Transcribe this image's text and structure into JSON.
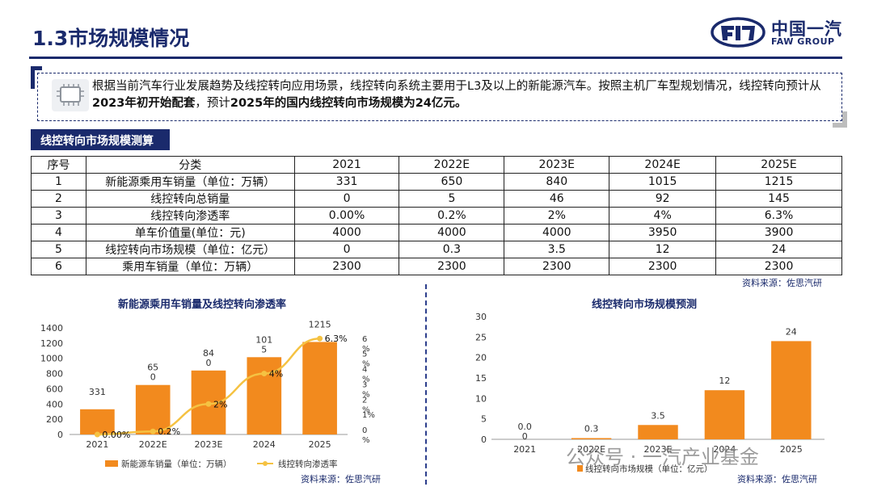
{
  "header": {
    "title": "1.3市场规模情况",
    "logo_cn": "中国一汽",
    "logo_en": "FAW GROUP"
  },
  "callout": {
    "text_1": "根据当前汽车行业发展趋势及线控转向应用场景，线控转向系统主要用于L3及以上的新能源汽车。按照主机厂车型规划情况，线控转向预计从",
    "bold_1": "2023年初开始配套",
    "text_2": "，预计",
    "bold_2": "2025年的国内线控转向市场规模为24亿元。"
  },
  "section_label": "线控转向市场规模测算",
  "table": {
    "headers": [
      "序号",
      "分类",
      "2021",
      "2022E",
      "2023E",
      "2024E",
      "2025E"
    ],
    "rows": [
      [
        "1",
        "新能源乘用车销量（单位：万辆）",
        "331",
        "650",
        "840",
        "1015",
        "1215"
      ],
      [
        "2",
        "线控转向总销量",
        "0",
        "5",
        "46",
        "92",
        "145"
      ],
      [
        "3",
        "线控转向渗透率",
        "0.00%",
        "0.2%",
        "2%",
        "4%",
        "6.3%"
      ],
      [
        "4",
        "单车价值量(单位：元)",
        "4000",
        "4000",
        "4000",
        "3950",
        "3900"
      ],
      [
        "5",
        "线控转向市场规模（单位：亿元）",
        "0",
        "0.3",
        "3.5",
        "12",
        "24"
      ],
      [
        "6",
        "乘用车销量（单位：万辆）",
        "2300",
        "2300",
        "2300",
        "2300",
        "2300"
      ]
    ]
  },
  "source_table": "资料来源：佐思汽研",
  "source_left": "资料来源：佐思汽研",
  "source_right": "资料来源：佐思汽研",
  "watermark": "公众号 · 一汽产业基金",
  "colors": {
    "navy": "#1a2a6c",
    "bar": "#f28a1e",
    "line": "#f5c242"
  },
  "chart_data": [
    {
      "type": "bar",
      "title": "新能源乘用车销量及线控转向渗透率",
      "categories": [
        "2021",
        "2022E",
        "2023E",
        "2024",
        "2025"
      ],
      "ylim": [
        0,
        1400
      ],
      "yticks": [
        "0",
        "200",
        "400",
        "600",
        "800",
        "1000",
        "1200",
        "1400"
      ],
      "y2ticks": [
        "0\n%",
        "1%",
        "2\n%",
        "3\n%",
        "4\n%",
        "5\n%",
        "6\n%"
      ],
      "series": [
        {
          "name": "新能源车销量（单位：万辆）",
          "type": "bar",
          "values": [
            331,
            650,
            840,
            1015,
            1215
          ],
          "labels": [
            "331",
            "65\n0",
            "84\n0",
            "101\n5",
            "1215"
          ]
        },
        {
          "name": "线控转向渗透率",
          "type": "line",
          "values": [
            0.0,
            0.2,
            2,
            4,
            6.3
          ],
          "labels": [
            "0.00%",
            "0.2%",
            "2%",
            "4%",
            "6.3%"
          ]
        }
      ],
      "y2lim": [
        0,
        7
      ]
    },
    {
      "type": "bar",
      "title": "线控转向市场规模预测",
      "categories": [
        "2021",
        "2022E",
        "2023E",
        "2024",
        "2025"
      ],
      "ylim": [
        0,
        30
      ],
      "yticks": [
        "0",
        "5",
        "10",
        "15",
        "20",
        "25",
        "30"
      ],
      "series": [
        {
          "name": "线控转向市场规模（单位：亿元）",
          "values": [
            0,
            0.3,
            3.5,
            12,
            24
          ],
          "labels": [
            "0.0\n0",
            "0.3",
            "3.5",
            "12",
            "24"
          ]
        }
      ]
    }
  ]
}
